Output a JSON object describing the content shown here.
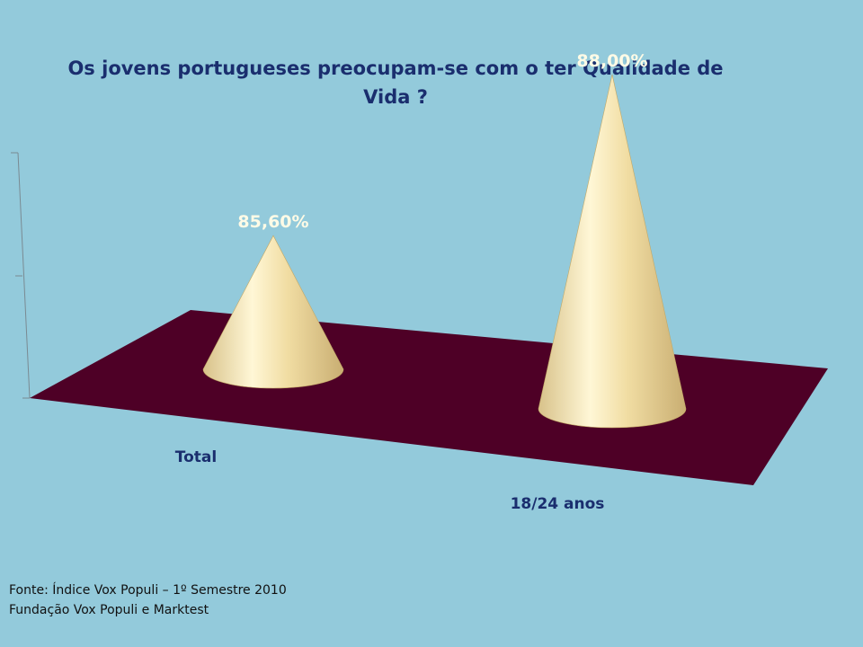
{
  "chart_data": {
    "type": "bar",
    "style": "3d-cone",
    "title_lines": [
      "Os jovens portugueses preocupam-se  com o ter Qualidade de",
      "Vida ?"
    ],
    "categories": [
      "Total",
      "18/24 anos"
    ],
    "values": [
      85.6,
      88.0
    ],
    "data_labels": [
      "85,60%",
      "88,00%"
    ],
    "floor_color": "#4e0026",
    "cone_color": "#f2dfa5",
    "background_color": "#93cadb"
  },
  "source": {
    "line1": "Fonte: Índice Vox Populi – 1º Semestre 2010",
    "line2": "Fundação Vox Populi e Marktest"
  }
}
